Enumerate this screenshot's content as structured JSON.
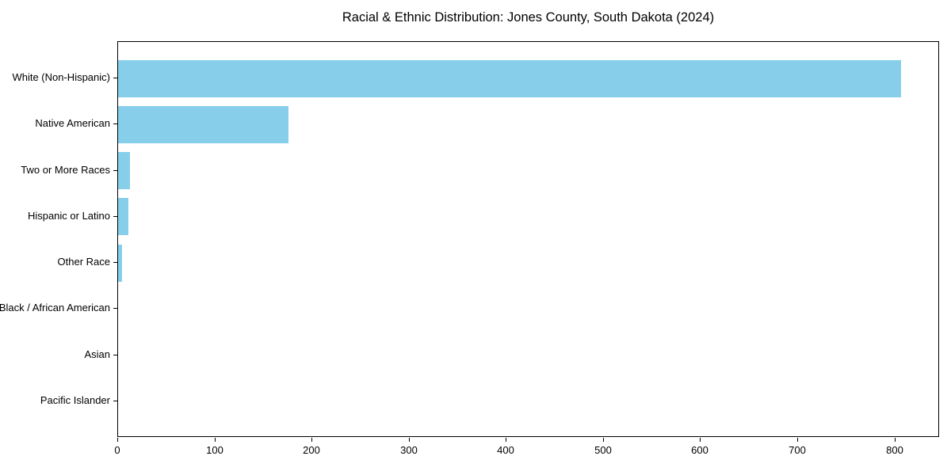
{
  "chart_data": {
    "type": "bar",
    "orientation": "horizontal",
    "title": "Racial & Ethnic Distribution: Jones County, South Dakota (2024)",
    "categories": [
      "White (Non-Hispanic)",
      "Native American",
      "Two or More Races",
      "Hispanic or Latino",
      "Other Race",
      "Black / African American",
      "Asian",
      "Pacific Islander"
    ],
    "values": [
      806,
      175,
      12,
      11,
      4,
      0,
      0,
      0
    ],
    "xlabel": "",
    "ylabel": "",
    "xticks": [
      0,
      100,
      200,
      300,
      400,
      500,
      600,
      700,
      800
    ],
    "xlim": [
      0,
      846
    ],
    "grid": false,
    "legend": null,
    "bar_color": "#87CEEB",
    "axis_color": "#000000",
    "text_color": "#000000",
    "background_color": "#FFFFFF"
  }
}
